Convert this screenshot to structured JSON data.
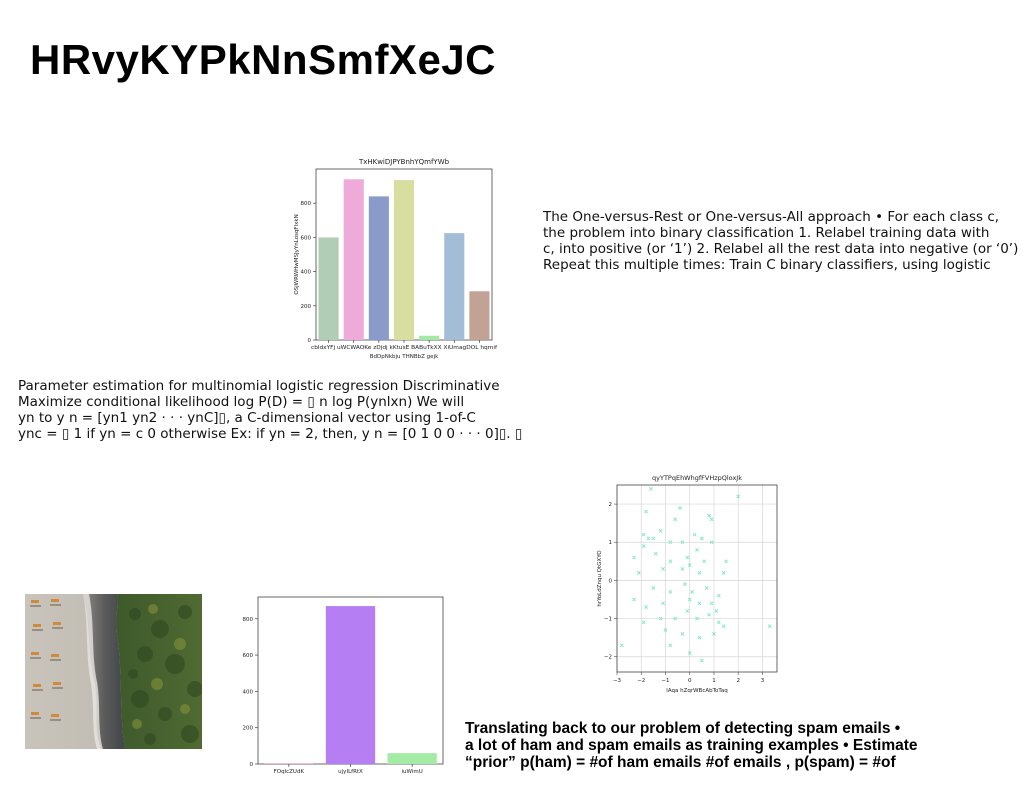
{
  "title": "HRvyKYPkNnSmfXeJC",
  "paragraph_right_top": {
    "lines": [
      "The One-versus-Rest or One-versus-All approach • For each class c,",
      "the problem into binary classification 1. Relabel training data with",
      "c, into positive (or ‘1’) 2. Relabel all the rest data into negative (or ‘0’)",
      "Repeat this multiple times: Train C binary classifiers, using logistic"
    ]
  },
  "paragraph_left_mid": {
    "lines": [
      "Parameter estimation for multinomial logistic regression Discriminative",
      "Maximize conditional likelihood log P(D) = ▯ n log P(ynlxn) We will",
      "yn to y n = [yn1 yn2 · · · ynC]▯, a C-dimensional vector using 1-of-C",
      "ync = ▯ 1 if yn = c 0 otherwise Ex: if yn = 2, then, y n = [0 1 0 0 · · · 0]▯. ▯"
    ]
  },
  "paragraph_bottom": {
    "lines": [
      "Translating back to our problem of detecting spam emails •",
      "a lot of ham and spam emails as training examples • Estimate",
      "“prior” p(ham) = #of ham emails #of emails , p(spam) = #of"
    ]
  },
  "chart_data": [
    {
      "type": "bar",
      "title": "TxHKwiDJPYBnhYQmfYWb",
      "xlabel": "BdDpNkbju THNBbZ gejk",
      "ylabel": "OSjWRWHwMSJyYnLosqFlxkN",
      "categories": [
        "cbldxYFj",
        "uWCWAOKe",
        "zDjdj",
        "kKtusE",
        "BABuTkXX",
        "XiUmagDOL",
        "hqmif"
      ],
      "colors": [
        "#b2cdb6",
        "#eeaad8",
        "#8a9bc9",
        "#d8dda0",
        "#a4e8a4",
        "#a4bdd6",
        "#c2a295"
      ],
      "values": [
        600,
        940,
        840,
        935,
        25,
        625,
        285
      ],
      "ylim": [
        0,
        1000
      ],
      "yticks": [
        0,
        200,
        400,
        600,
        800
      ]
    },
    {
      "type": "scatter",
      "title": "qyYTPqEhWhgfFVHzpQloxJk",
      "xlabel": "lAqa hZqrWBcAbToTaq",
      "ylabel": "hrYoLdZnqu QtGXYO",
      "color": "#7de8c6",
      "marker": "x",
      "grid": true,
      "xlim": [
        -3,
        3.6
      ],
      "ylim": [
        -2.4,
        2.5
      ],
      "xticks": [
        -3,
        -2,
        -1,
        0,
        1,
        2,
        3
      ],
      "yticks": [
        -2,
        -1,
        0,
        1,
        2
      ],
      "points": [
        [
          -1.6,
          2.4
        ],
        [
          2.0,
          2.2
        ],
        [
          -1.8,
          1.8
        ],
        [
          -0.4,
          1.9
        ],
        [
          0.8,
          1.7
        ],
        [
          0.9,
          1.6
        ],
        [
          -1.9,
          1.2
        ],
        [
          -1.7,
          1.1
        ],
        [
          -1.5,
          1.1
        ],
        [
          -1.2,
          1.3
        ],
        [
          -0.6,
          1.6
        ],
        [
          -0.3,
          1.0
        ],
        [
          0.2,
          1.2
        ],
        [
          0.5,
          1.1
        ],
        [
          -1.9,
          0.9
        ],
        [
          -0.8,
          1.0
        ],
        [
          0.3,
          0.8
        ],
        [
          0.9,
          1.0
        ],
        [
          -2.3,
          0.6
        ],
        [
          -1.4,
          0.7
        ],
        [
          -0.8,
          0.5
        ],
        [
          -0.1,
          0.6
        ],
        [
          0.6,
          0.5
        ],
        [
          1.5,
          0.5
        ],
        [
          -2.1,
          0.2
        ],
        [
          -1.1,
          0.3
        ],
        [
          -0.3,
          0.3
        ],
        [
          0.0,
          0.4
        ],
        [
          0.4,
          0.2
        ],
        [
          1.4,
          0.2
        ],
        [
          -1.5,
          -0.2
        ],
        [
          -0.8,
          -0.3
        ],
        [
          -0.2,
          -0.1
        ],
        [
          0.1,
          -0.3
        ],
        [
          0.7,
          -0.2
        ],
        [
          1.2,
          -0.4
        ],
        [
          -2.3,
          -0.5
        ],
        [
          -1.8,
          -0.7
        ],
        [
          -1.1,
          -0.6
        ],
        [
          0.0,
          -0.5
        ],
        [
          0.4,
          -0.6
        ],
        [
          0.9,
          -0.6
        ],
        [
          -1.2,
          -1.0
        ],
        [
          -0.6,
          -1.0
        ],
        [
          -0.1,
          -0.8
        ],
        [
          0.3,
          -1.0
        ],
        [
          0.8,
          -0.9
        ],
        [
          1.2,
          -1.1
        ],
        [
          -1.9,
          -1.1
        ],
        [
          -1.0,
          -1.3
        ],
        [
          -0.3,
          -1.4
        ],
        [
          0.4,
          -1.5
        ],
        [
          1.0,
          -1.4
        ],
        [
          1.1,
          -0.8
        ],
        [
          -0.8,
          -1.7
        ],
        [
          0.0,
          -1.9
        ],
        [
          0.5,
          -2.1
        ],
        [
          -2.8,
          -1.7
        ],
        [
          3.3,
          -1.2
        ],
        [
          1.4,
          -1.2
        ]
      ]
    },
    {
      "type": "bar",
      "title": "",
      "xlabel": "",
      "ylabel": "",
      "categories": [
        "FOqlcZUdK",
        "ujyILfRtX",
        "iuWimU"
      ],
      "colors": [
        "#f1b8c6",
        "#b57ef2",
        "#a4eca6"
      ],
      "values": [
        5,
        870,
        60
      ],
      "ylim": [
        0,
        920
      ],
      "yticks": [
        0,
        200,
        400,
        600,
        800
      ]
    }
  ]
}
